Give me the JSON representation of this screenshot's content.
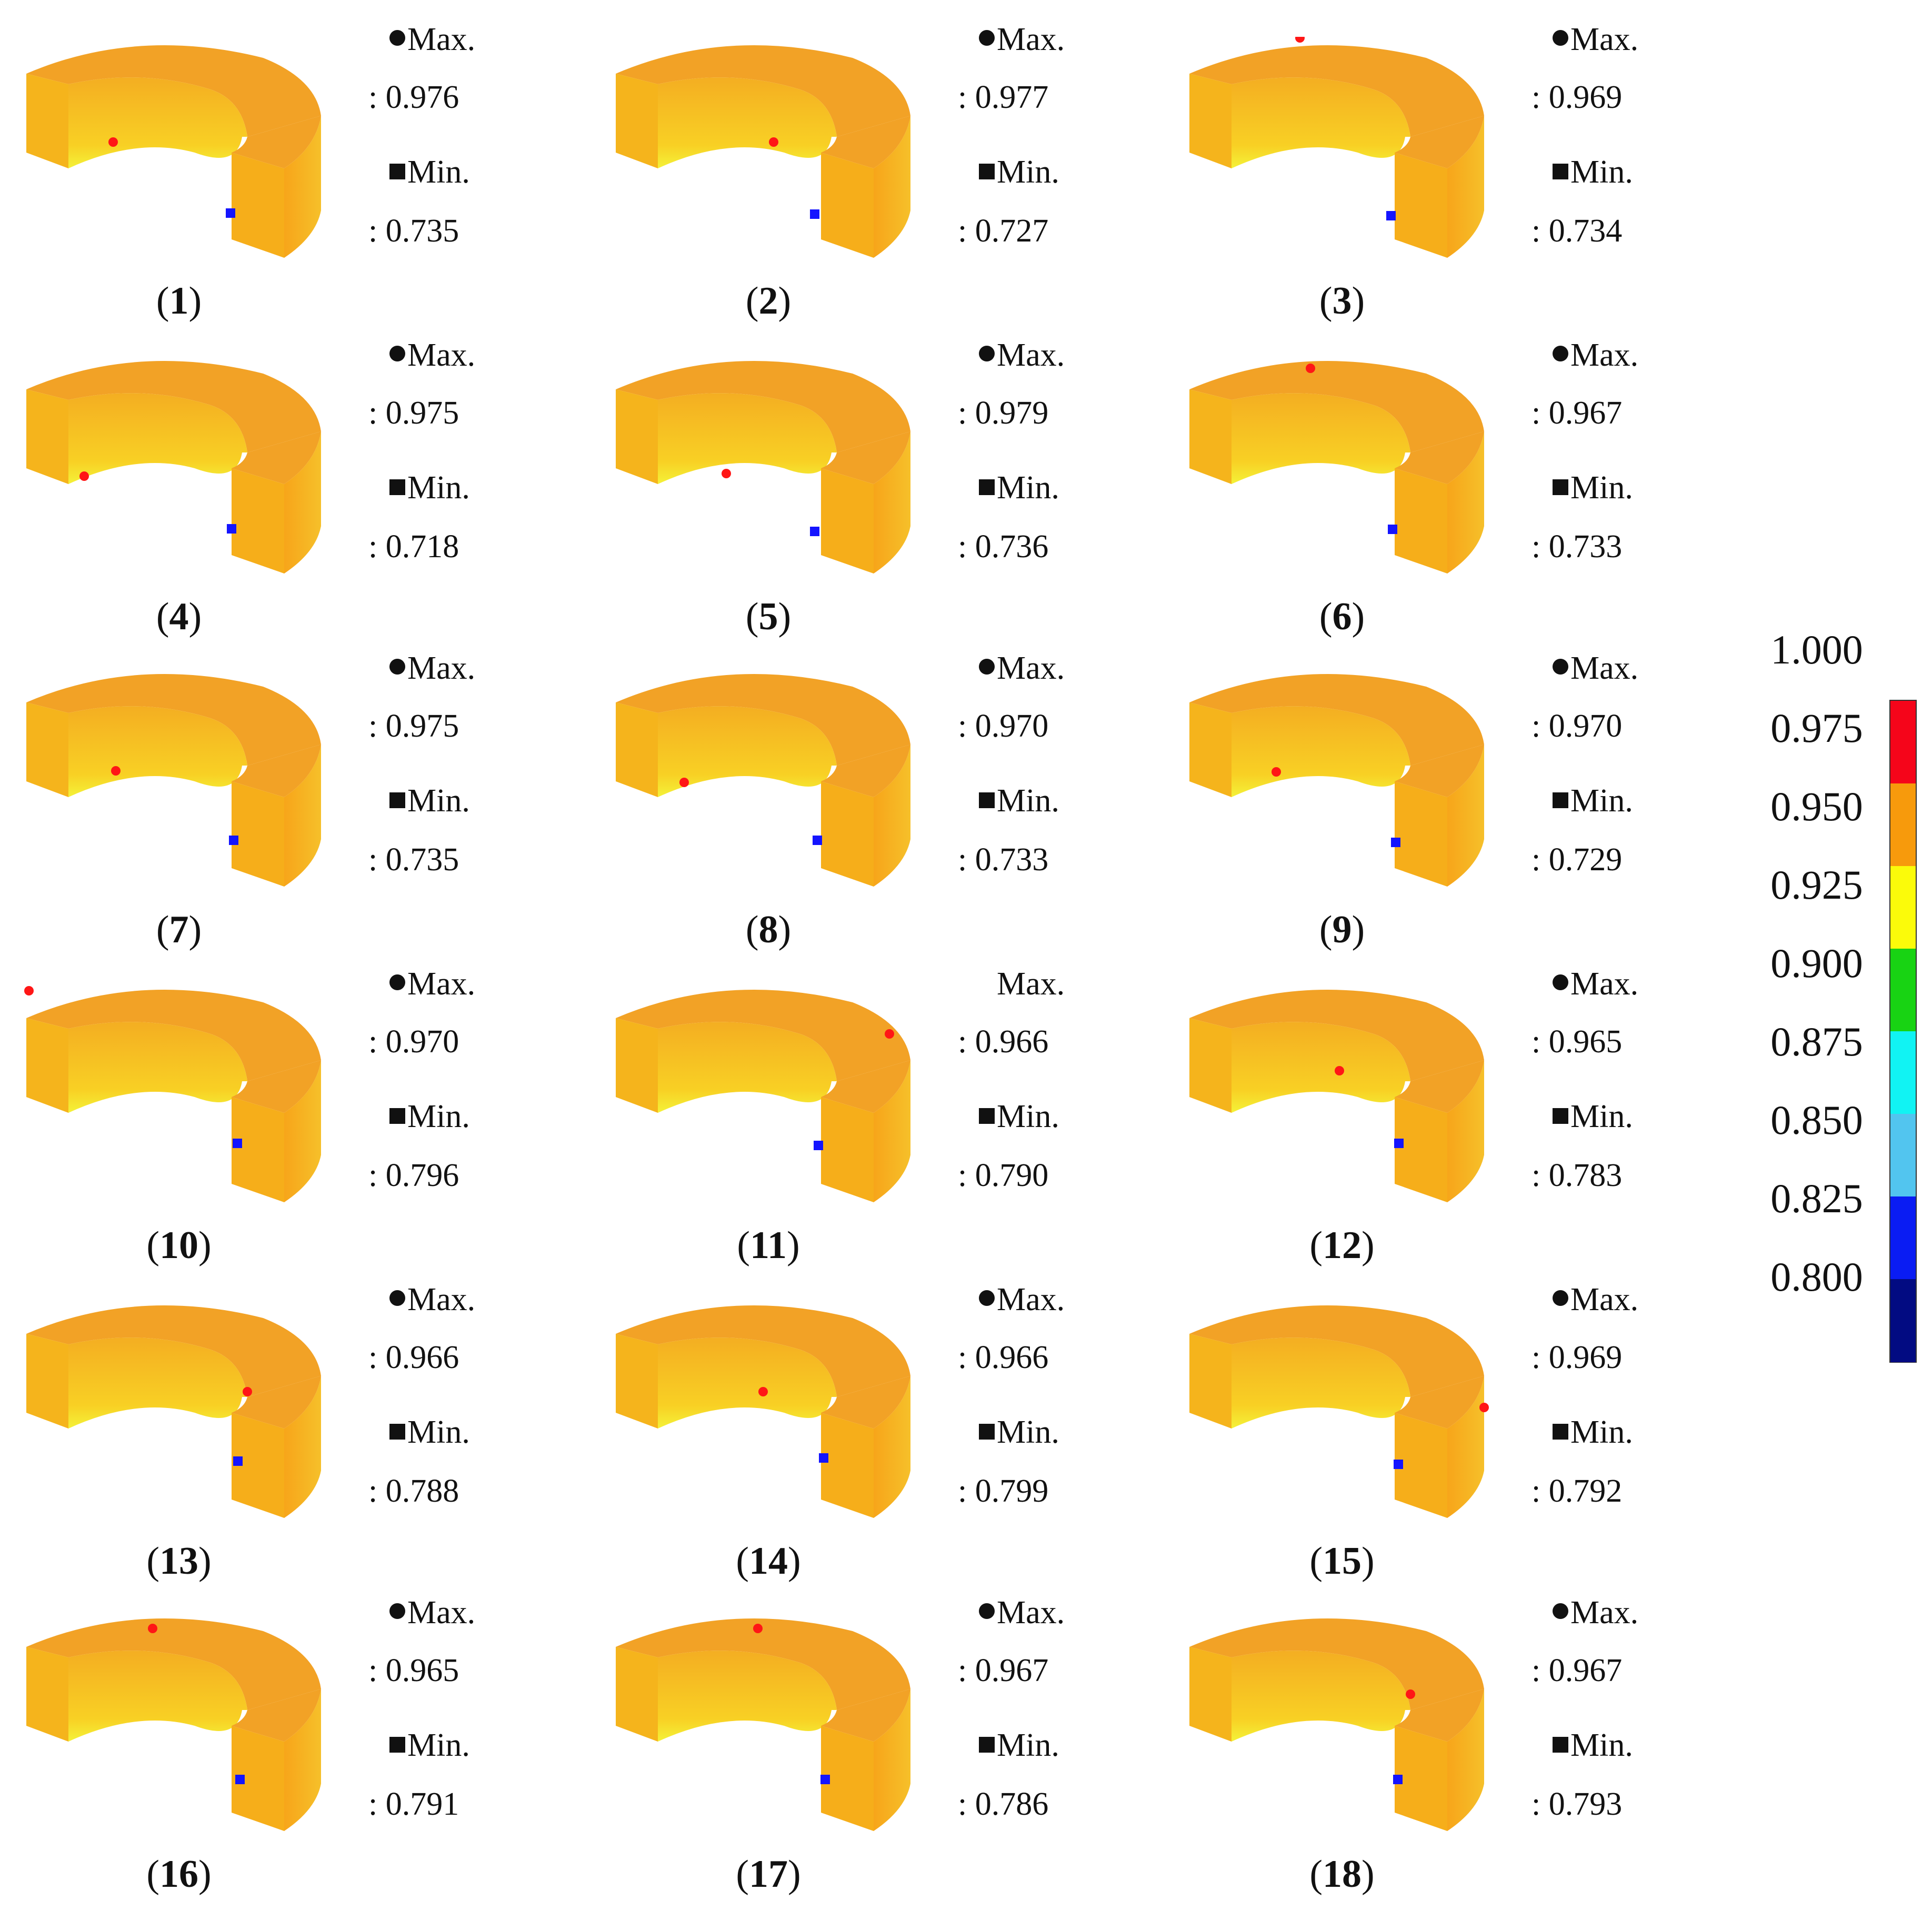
{
  "panels": [
    {
      "label": "1",
      "max_label": "Max.",
      "max_value": ": 0.976",
      "min_label": "Min.",
      "min_value": ": 0.735",
      "max_symbol": "filled-circle-icon"
    },
    {
      "label": "2",
      "max_label": "Max.",
      "max_value": ": 0.977",
      "min_label": "Min.",
      "min_value": ": 0.727",
      "max_symbol": "filled-circle-icon"
    },
    {
      "label": "3",
      "max_label": "Max.",
      "max_value": ": 0.969",
      "min_label": "Min.",
      "min_value": ": 0.734",
      "max_symbol": "filled-circle-icon"
    },
    {
      "label": "4",
      "max_label": "Max.",
      "max_value": ": 0.975",
      "min_label": "Min.",
      "min_value": ": 0.718",
      "max_symbol": "filled-circle-icon"
    },
    {
      "label": "5",
      "max_label": "Max.",
      "max_value": ": 0.979",
      "min_label": "Min.",
      "min_value": ": 0.736",
      "max_symbol": "filled-circle-icon"
    },
    {
      "label": "6",
      "max_label": "Max.",
      "max_value": ": 0.967",
      "min_label": "Min.",
      "min_value": ": 0.733",
      "max_symbol": "filled-circle-icon"
    },
    {
      "label": "7",
      "max_label": "Max.",
      "max_value": ": 0.975",
      "min_label": "Min.",
      "min_value": ": 0.735",
      "max_symbol": "filled-circle-icon"
    },
    {
      "label": "8",
      "max_label": "Max.",
      "max_value": ": 0.970",
      "min_label": "Min.",
      "min_value": ": 0.733",
      "max_symbol": "filled-circle-icon"
    },
    {
      "label": "9",
      "max_label": "Max.",
      "max_value": ": 0.970",
      "min_label": "Min.",
      "min_value": ": 0.729",
      "max_symbol": "filled-circle-icon"
    },
    {
      "label": "10",
      "max_label": "Max.",
      "max_value": ": 0.970",
      "min_label": "Min.",
      "min_value": ": 0.796",
      "max_symbol": "filled-circle-icon"
    },
    {
      "label": "11",
      "max_label": "Max.",
      "max_value": ": 0.966",
      "min_label": "Min.",
      "min_value": ": 0.790",
      "max_symbol": "none"
    },
    {
      "label": "12",
      "max_label": "Max.",
      "max_value": ": 0.965",
      "min_label": "Min.",
      "min_value": ": 0.783",
      "max_symbol": "filled-circle-icon"
    },
    {
      "label": "13",
      "max_label": "Max.",
      "max_value": ": 0.966",
      "min_label": "Min.",
      "min_value": ": 0.788",
      "max_symbol": "filled-circle-icon"
    },
    {
      "label": "14",
      "max_label": "Max.",
      "max_value": ": 0.966",
      "min_label": "Min.",
      "min_value": ": 0.799",
      "max_symbol": "filled-circle-icon"
    },
    {
      "label": "15",
      "max_label": "Max.",
      "max_value": ": 0.969",
      "min_label": "Min.",
      "min_value": ": 0.792",
      "max_symbol": "filled-circle-icon"
    },
    {
      "label": "16",
      "max_label": "Max.",
      "max_value": ": 0.965",
      "min_label": "Min.",
      "min_value": ": 0.791",
      "max_symbol": "filled-circle-icon"
    },
    {
      "label": "17",
      "max_label": "Max.",
      "max_value": ": 0.967",
      "min_label": "Min.",
      "min_value": ": 0.786",
      "max_symbol": "filled-circle-icon"
    },
    {
      "label": "18",
      "max_label": "Max.",
      "max_value": ": 0.967",
      "min_label": "Min.",
      "min_value": ": 0.793",
      "max_symbol": "filled-circle-icon"
    }
  ],
  "legend": {
    "tick_labels": [
      "1.000",
      "0.975",
      "0.950",
      "0.925",
      "0.900",
      "0.875",
      "0.850",
      "0.825",
      "0.800"
    ],
    "segment_colors": [
      "#f5051a",
      "#f79a0c",
      "#fbfb0a",
      "#18d313",
      "#11f3f3",
      "#52c5ef",
      "#0a1cf3",
      "#020b82"
    ]
  },
  "colors": {
    "ring_top": "#f2a226",
    "ring_inner": "#f7bf26",
    "ring_side": "#f5b41c",
    "ring_front": "#f6ae1a",
    "max_marker": "#ff1616",
    "min_marker": "#1414ff"
  }
}
